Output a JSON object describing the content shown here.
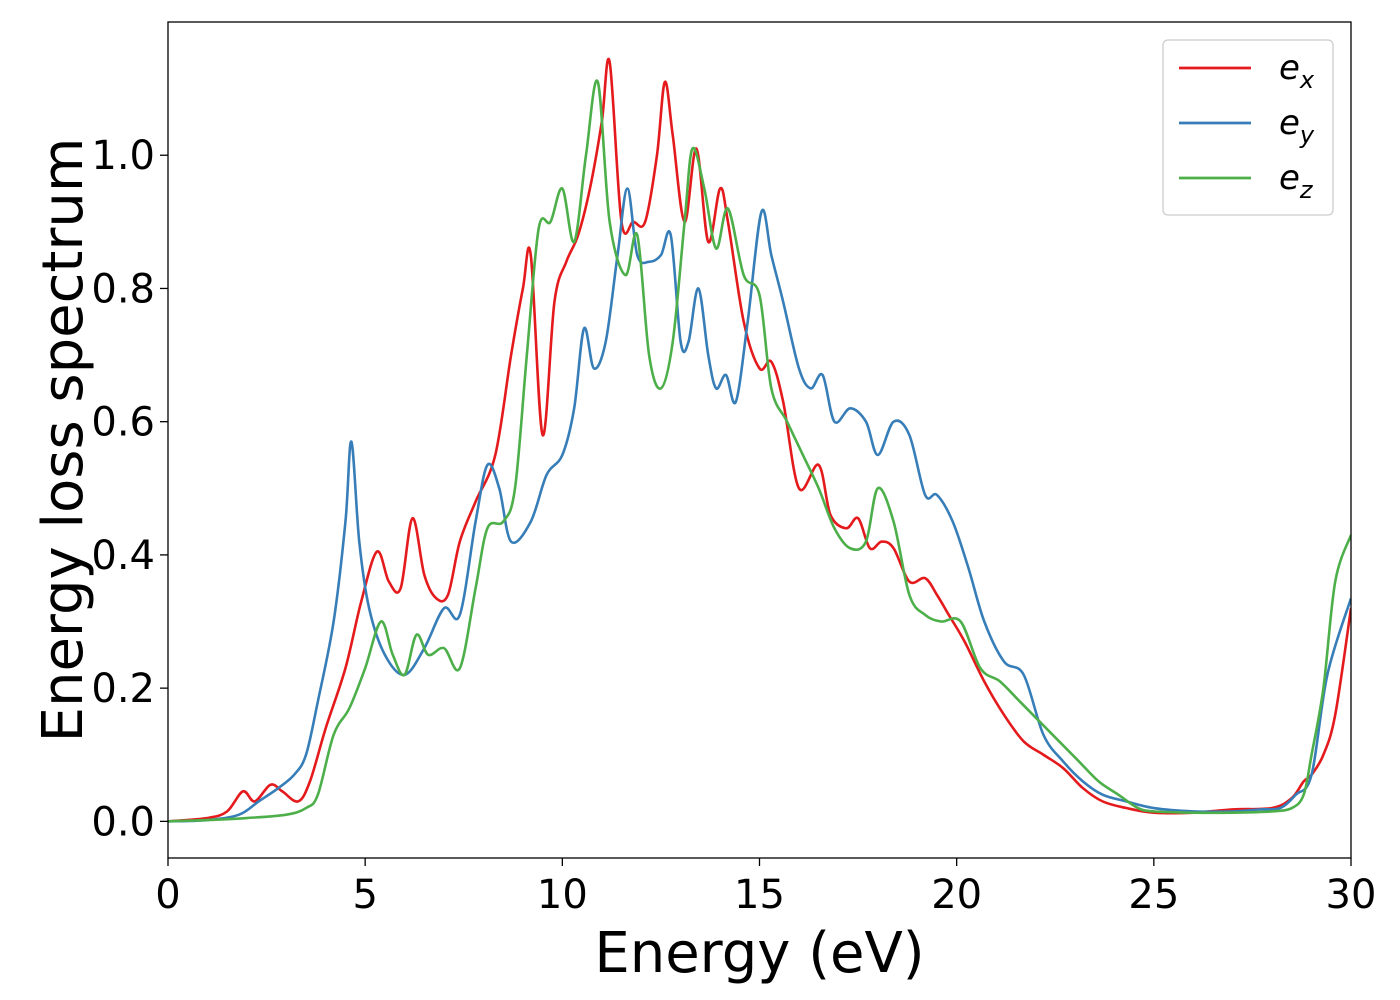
{
  "chart_data": {
    "type": "line",
    "title": "",
    "xlabel": "Energy (eV)",
    "ylabel": "Energy loss spectrum",
    "xlim": [
      0,
      30
    ],
    "ylim": [
      -0.055,
      1.2
    ],
    "xticks": [
      0,
      5,
      10,
      15,
      20,
      25,
      30
    ],
    "yticks": [
      0.0,
      0.2,
      0.4,
      0.6,
      0.8,
      1.0
    ],
    "xtick_labels": [
      "0",
      "5",
      "10",
      "15",
      "20",
      "25",
      "30"
    ],
    "ytick_labels": [
      "0.0",
      "0.2",
      "0.4",
      "0.6",
      "0.8",
      "1.0"
    ],
    "grid": false,
    "legend": "top-right",
    "series": [
      {
        "name": "e",
        "subscript": "x",
        "color": "#e41a1c",
        "x": [
          0,
          1,
          1.5,
          1.9,
          2.2,
          2.6,
          2.9,
          3.3,
          3.6,
          4,
          4.5,
          4.9,
          5.3,
          5.6,
          5.9,
          6.2,
          6.5,
          6.8,
          7.1,
          7.4,
          7.8,
          8.3,
          8.7,
          9,
          9.2,
          9.5,
          9.8,
          10.1,
          10.4,
          10.7,
          11,
          11.2,
          11.5,
          11.8,
          12.1,
          12.4,
          12.6,
          12.8,
          13.1,
          13.4,
          13.7,
          14,
          14.2,
          14.6,
          15,
          15.3,
          15.6,
          16,
          16.5,
          16.8,
          17.2,
          17.5,
          17.8,
          18.1,
          18.4,
          18.8,
          19.2,
          19.5,
          19.8,
          20.2,
          20.7,
          21.2,
          21.7,
          22.2,
          22.7,
          23.2,
          23.7,
          24.3,
          25,
          26,
          27,
          28,
          28.5,
          28.8,
          29,
          29.3,
          29.6,
          30
        ],
        "y": [
          0,
          0.005,
          0.015,
          0.045,
          0.03,
          0.055,
          0.045,
          0.03,
          0.06,
          0.14,
          0.23,
          0.33,
          0.405,
          0.36,
          0.35,
          0.455,
          0.37,
          0.335,
          0.34,
          0.42,
          0.48,
          0.55,
          0.7,
          0.8,
          0.85,
          0.58,
          0.78,
          0.84,
          0.88,
          0.95,
          1.05,
          1.14,
          0.9,
          0.9,
          0.9,
          1.0,
          1.11,
          1.03,
          0.9,
          1.01,
          0.87,
          0.95,
          0.9,
          0.75,
          0.68,
          0.69,
          0.63,
          0.5,
          0.535,
          0.46,
          0.44,
          0.455,
          0.41,
          0.42,
          0.41,
          0.36,
          0.365,
          0.34,
          0.31,
          0.27,
          0.21,
          0.16,
          0.12,
          0.1,
          0.08,
          0.05,
          0.03,
          0.02,
          0.013,
          0.013,
          0.018,
          0.02,
          0.035,
          0.06,
          0.07,
          0.1,
          0.16,
          0.32
        ]
      },
      {
        "name": "e",
        "subscript": "y",
        "color": "#377eb8",
        "x": [
          0,
          1,
          1.8,
          2.3,
          2.8,
          3.2,
          3.5,
          3.8,
          4.2,
          4.5,
          4.65,
          4.85,
          5.1,
          5.5,
          6,
          6.5,
          7,
          7.4,
          7.8,
          8.1,
          8.4,
          8.7,
          9.2,
          9.6,
          10,
          10.3,
          10.55,
          10.8,
          11.1,
          11.4,
          11.65,
          11.9,
          12.2,
          12.5,
          12.75,
          13,
          13.2,
          13.45,
          13.7,
          13.9,
          14.15,
          14.4,
          14.7,
          15.05,
          15.3,
          15.6,
          16,
          16.3,
          16.6,
          16.9,
          17.3,
          17.7,
          18,
          18.4,
          18.8,
          19.2,
          19.5,
          19.9,
          20.3,
          20.7,
          21.2,
          21.7,
          22.2,
          22.7,
          23.2,
          23.7,
          24.3,
          25,
          26,
          27,
          27.7,
          28.2,
          28.6,
          29,
          29.4,
          30
        ],
        "y": [
          0,
          0.002,
          0.01,
          0.03,
          0.05,
          0.07,
          0.1,
          0.18,
          0.3,
          0.45,
          0.57,
          0.42,
          0.32,
          0.25,
          0.22,
          0.26,
          0.32,
          0.31,
          0.45,
          0.535,
          0.5,
          0.42,
          0.45,
          0.52,
          0.55,
          0.62,
          0.74,
          0.68,
          0.72,
          0.85,
          0.95,
          0.85,
          0.84,
          0.85,
          0.88,
          0.72,
          0.72,
          0.8,
          0.7,
          0.65,
          0.67,
          0.63,
          0.75,
          0.915,
          0.85,
          0.78,
          0.68,
          0.65,
          0.67,
          0.6,
          0.62,
          0.6,
          0.55,
          0.6,
          0.58,
          0.49,
          0.49,
          0.45,
          0.38,
          0.3,
          0.24,
          0.22,
          0.13,
          0.09,
          0.06,
          0.04,
          0.03,
          0.02,
          0.015,
          0.015,
          0.018,
          0.02,
          0.04,
          0.07,
          0.22,
          0.335
        ]
      },
      {
        "name": "e",
        "subscript": "z",
        "color": "#4daf4a",
        "x": [
          0,
          1,
          2,
          3,
          3.5,
          3.8,
          4.2,
          4.6,
          5,
          5.4,
          5.7,
          6,
          6.3,
          6.6,
          7,
          7.4,
          7.8,
          8.1,
          8.5,
          8.8,
          9.1,
          9.4,
          9.7,
          10,
          10.3,
          10.6,
          10.9,
          11.2,
          11.6,
          11.9,
          12.2,
          12.5,
          12.8,
          13.1,
          13.3,
          13.6,
          13.9,
          14.2,
          14.6,
          15,
          15.3,
          15.7,
          16.1,
          16.5,
          16.9,
          17.3,
          17.7,
          18,
          18.4,
          18.8,
          19.2,
          19.6,
          20.1,
          20.6,
          21.1,
          21.6,
          22.1,
          22.6,
          23.1,
          23.6,
          24.1,
          24.6,
          25,
          26,
          27,
          28,
          28.5,
          28.8,
          29,
          29.3,
          29.6,
          30
        ],
        "y": [
          0,
          0.002,
          0.005,
          0.01,
          0.02,
          0.04,
          0.13,
          0.17,
          0.23,
          0.3,
          0.25,
          0.22,
          0.28,
          0.25,
          0.26,
          0.23,
          0.35,
          0.44,
          0.45,
          0.5,
          0.7,
          0.89,
          0.9,
          0.95,
          0.87,
          1.0,
          1.11,
          0.9,
          0.82,
          0.88,
          0.7,
          0.65,
          0.72,
          0.9,
          1.01,
          0.95,
          0.86,
          0.92,
          0.82,
          0.79,
          0.65,
          0.6,
          0.55,
          0.5,
          0.44,
          0.41,
          0.42,
          0.5,
          0.45,
          0.34,
          0.31,
          0.3,
          0.3,
          0.23,
          0.21,
          0.18,
          0.15,
          0.12,
          0.09,
          0.06,
          0.04,
          0.02,
          0.015,
          0.013,
          0.013,
          0.015,
          0.02,
          0.04,
          0.1,
          0.2,
          0.36,
          0.43
        ]
      }
    ]
  }
}
